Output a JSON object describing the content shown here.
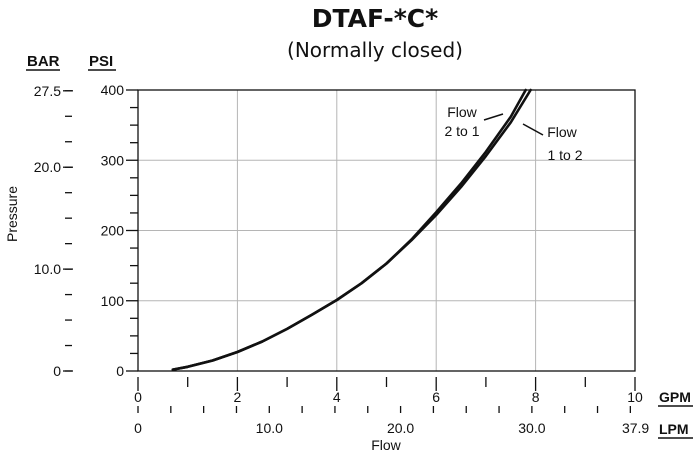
{
  "chart_data": {
    "type": "line",
    "title": "DTAF-*C*",
    "subtitle": "(Normally closed)",
    "xlabel": "Flow",
    "ylabel": "Pressure",
    "x_units": [
      "GPM",
      "LPM"
    ],
    "y_units": [
      "BAR",
      "PSI"
    ],
    "xlim_gpm": [
      0,
      10
    ],
    "ylim_psi": [
      0,
      400
    ],
    "x_ticks_gpm": [
      "0",
      "2",
      "4",
      "6",
      "8",
      "10"
    ],
    "x_ticks_lpm": [
      "0",
      "10.0",
      "20.0",
      "30.0",
      "37.9"
    ],
    "y_ticks_psi": [
      "0",
      "100",
      "200",
      "300",
      "400"
    ],
    "y_ticks_bar": [
      "0",
      "10.0",
      "20.0",
      "27.5"
    ],
    "grid": true,
    "series": [
      {
        "name": "Flow 2 to 1",
        "label_lines": [
          "Flow",
          "2 to 1"
        ],
        "x": [
          0.7,
          1.0,
          1.5,
          2.0,
          2.5,
          3.0,
          3.5,
          4.0,
          4.5,
          5.0,
          5.5,
          6.0,
          6.5,
          7.0,
          7.5,
          7.8
        ],
        "y": [
          2,
          6,
          15,
          27,
          42,
          60,
          80,
          101,
          125,
          153,
          187,
          226,
          267,
          312,
          362,
          400
        ]
      },
      {
        "name": "Flow 1 to 2",
        "label_lines": [
          "Flow",
          "1 to 2"
        ],
        "x": [
          0.7,
          1.0,
          1.5,
          2.0,
          2.5,
          3.0,
          3.5,
          4.0,
          4.5,
          5.0,
          5.5,
          6.0,
          6.5,
          7.0,
          7.5,
          7.9
        ],
        "y": [
          2,
          6,
          15,
          27,
          42,
          60,
          80,
          101,
          125,
          153,
          186,
          222,
          262,
          306,
          354,
          400
        ]
      }
    ]
  }
}
